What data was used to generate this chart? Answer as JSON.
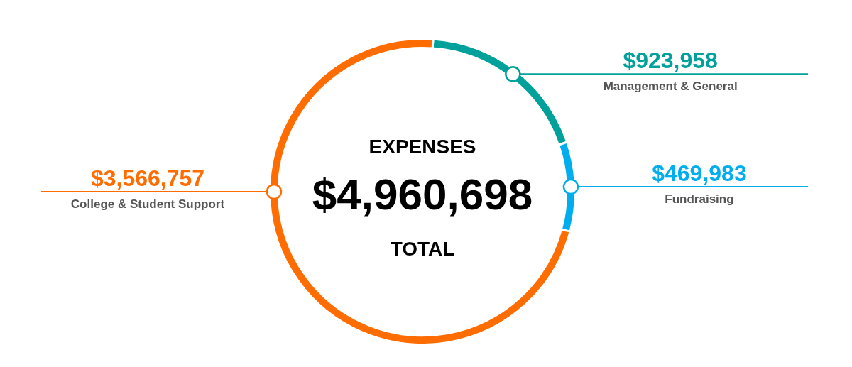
{
  "chart_data": {
    "type": "donut",
    "title": "EXPENSES",
    "annotations": [
      "$4,960,698",
      "TOTAL"
    ],
    "categories": [
      "Management & General",
      "Fundraising",
      "College & Student Support"
    ],
    "values": [
      923958,
      469983,
      3566757
    ],
    "colors": [
      "#00a19a",
      "#00aeef",
      "#ff6c00"
    ],
    "value_labels": [
      "$923,958",
      "$469,983",
      "$3,566,757"
    ],
    "legend": false
  }
}
